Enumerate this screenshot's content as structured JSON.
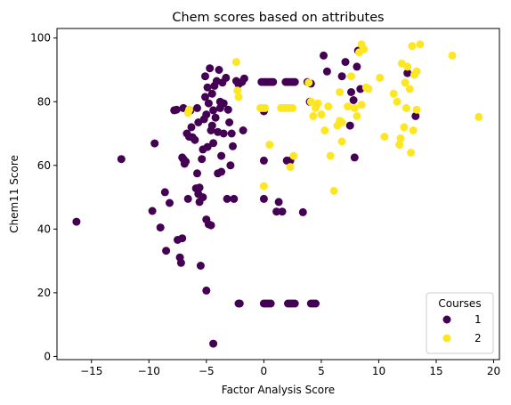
{
  "chart_data": {
    "type": "scatter",
    "title": "Chem scores based on attributes",
    "xlabel": "Factor Analysis Score",
    "ylabel": "Chem11 Score",
    "xlim": [
      -18,
      20.5
    ],
    "ylim": [
      -1,
      103
    ],
    "xticks": [
      -15,
      -10,
      -5,
      0,
      5,
      10,
      15,
      20
    ],
    "yticks": [
      0,
      20,
      40,
      60,
      80,
      100
    ],
    "grid": false,
    "legend": {
      "title": "Courses",
      "placement": "lower-right"
    },
    "series": [
      {
        "name": "1",
        "color": "#440154",
        "points": [
          [
            -16.3,
            42.3
          ],
          [
            -12.4,
            62
          ],
          [
            -9.7,
            45.7
          ],
          [
            -9.5,
            66.9
          ],
          [
            -9,
            40.5
          ],
          [
            -8.6,
            51.6
          ],
          [
            -8.5,
            33.2
          ],
          [
            -8.2,
            48.2
          ],
          [
            -7.8,
            77.3
          ],
          [
            -7.6,
            77.5
          ],
          [
            -7.5,
            36.6
          ],
          [
            -7.3,
            31.1
          ],
          [
            -7.2,
            29.4
          ],
          [
            -7.1,
            37.1
          ],
          [
            -7.1,
            62.5
          ],
          [
            -7,
            78
          ],
          [
            -7,
            62
          ],
          [
            -6.9,
            60.5
          ],
          [
            -6.8,
            61.2
          ],
          [
            -6.7,
            70
          ],
          [
            -6.6,
            49.5
          ],
          [
            -6.5,
            69
          ],
          [
            -6.4,
            77.2
          ],
          [
            -6.3,
            72
          ],
          [
            -6.2,
            68.8
          ],
          [
            -6,
            68
          ],
          [
            -5.9,
            52.8
          ],
          [
            -5.8,
            57.5
          ],
          [
            -5.8,
            78
          ],
          [
            -5.7,
            73.5
          ],
          [
            -5.7,
            51
          ],
          [
            -5.6,
            53
          ],
          [
            -5.6,
            48.5
          ],
          [
            -5.5,
            28.5
          ],
          [
            -5.4,
            62
          ],
          [
            -5.3,
            65
          ],
          [
            -5.3,
            50
          ],
          [
            -5.2,
            74.5
          ],
          [
            -5.1,
            81.5
          ],
          [
            -5.1,
            88
          ],
          [
            -5,
            76
          ],
          [
            -5,
            43
          ],
          [
            -5,
            20.7
          ],
          [
            -4.9,
            84.5
          ],
          [
            -4.9,
            65.8
          ],
          [
            -4.8,
            41.5
          ],
          [
            -4.8,
            79.5
          ],
          [
            -4.7,
            90.5
          ],
          [
            -4.6,
            71
          ],
          [
            -4.6,
            41.2
          ],
          [
            -4.5,
            82.5
          ],
          [
            -4.5,
            72.5
          ],
          [
            -4.4,
            77.3
          ],
          [
            -4.4,
            67
          ],
          [
            -4.4,
            4
          ],
          [
            -4.3,
            85
          ],
          [
            -4.2,
            75
          ],
          [
            -4.1,
            86.5
          ],
          [
            -4,
            70.5
          ],
          [
            -4,
            57.5
          ],
          [
            -3.9,
            90
          ],
          [
            -3.8,
            80
          ],
          [
            -3.8,
            78
          ],
          [
            -3.7,
            63
          ],
          [
            -3.7,
            58
          ],
          [
            -3.6,
            86
          ],
          [
            -3.5,
            70
          ],
          [
            -3.5,
            79.5
          ],
          [
            -3.3,
            87.5
          ],
          [
            -3.2,
            49.5
          ],
          [
            -3.1,
            77.5
          ],
          [
            -3,
            73.5
          ],
          [
            -2.9,
            60
          ],
          [
            -2.8,
            70
          ],
          [
            -2.7,
            66
          ],
          [
            -2.6,
            49.5
          ],
          [
            -2.4,
            86.5
          ],
          [
            -2.2,
            85.5
          ],
          [
            -2.2,
            16.6
          ],
          [
            -2.1,
            16.6
          ],
          [
            -1.9,
            86.2
          ],
          [
            -1.8,
            71
          ],
          [
            -1.7,
            87.3
          ],
          [
            -0.2,
            86.2
          ],
          [
            0,
            86.2
          ],
          [
            0.2,
            86.2
          ],
          [
            0.4,
            86.2
          ],
          [
            0.6,
            86.2
          ],
          [
            0.8,
            86.2
          ],
          [
            0,
            77
          ],
          [
            0,
            61.5
          ],
          [
            0,
            49.5
          ],
          [
            0,
            16.6
          ],
          [
            0.2,
            16.6
          ],
          [
            0.4,
            16.6
          ],
          [
            0.6,
            16.6
          ],
          [
            1.1,
            45.5
          ],
          [
            1.3,
            48.5
          ],
          [
            1.6,
            45.5
          ],
          [
            1.9,
            86.2
          ],
          [
            2.1,
            86.2
          ],
          [
            2.3,
            86.2
          ],
          [
            2.5,
            86.2
          ],
          [
            2.7,
            86.2
          ],
          [
            2,
            61.5
          ],
          [
            2.3,
            61.5
          ],
          [
            2.1,
            16.6
          ],
          [
            2.3,
            16.6
          ],
          [
            2.5,
            16.6
          ],
          [
            2.7,
            16.6
          ],
          [
            3.4,
            45.3
          ],
          [
            3.8,
            86.2
          ],
          [
            4,
            80
          ],
          [
            4.1,
            85.7
          ],
          [
            4.1,
            16.6
          ],
          [
            4.3,
            16.6
          ],
          [
            4.5,
            16.6
          ],
          [
            5.2,
            94.5
          ],
          [
            5.5,
            89.5
          ],
          [
            6.8,
            88
          ],
          [
            7.1,
            92.5
          ],
          [
            7.5,
            72.5
          ],
          [
            7.6,
            83
          ],
          [
            7.8,
            80.5
          ],
          [
            7.9,
            62.5
          ],
          [
            8.1,
            91
          ],
          [
            8.2,
            96
          ],
          [
            8.4,
            84
          ],
          [
            12.5,
            89
          ],
          [
            13.2,
            75.5
          ]
        ]
      },
      {
        "name": "2",
        "color": "#fde725",
        "points": [
          [
            -6.6,
            76.5
          ],
          [
            -6.5,
            77.5
          ],
          [
            -2.4,
            92.5
          ],
          [
            -2.3,
            83.5
          ],
          [
            -2.2,
            81.5
          ],
          [
            -0.3,
            78
          ],
          [
            -0.1,
            78
          ],
          [
            0.1,
            78
          ],
          [
            0,
            53.5
          ],
          [
            0.5,
            66.5
          ],
          [
            1.5,
            78
          ],
          [
            1.7,
            78
          ],
          [
            1.9,
            78
          ],
          [
            2.1,
            78
          ],
          [
            2.3,
            78
          ],
          [
            2.5,
            78
          ],
          [
            2.3,
            59.5
          ],
          [
            2.6,
            63
          ],
          [
            3.9,
            86
          ],
          [
            4.1,
            80
          ],
          [
            4.3,
            75.5
          ],
          [
            4.5,
            78
          ],
          [
            4.7,
            79.5
          ],
          [
            5,
            76
          ],
          [
            5.3,
            71
          ],
          [
            5.6,
            78.5
          ],
          [
            5.8,
            63
          ],
          [
            6.1,
            52
          ],
          [
            6.4,
            72.5
          ],
          [
            6.6,
            74
          ],
          [
            6.8,
            73.5
          ],
          [
            6.6,
            83
          ],
          [
            6.8,
            67.5
          ],
          [
            7.3,
            78.5
          ],
          [
            7.6,
            88
          ],
          [
            7.9,
            78
          ],
          [
            8.1,
            75.5
          ],
          [
            8.3,
            95.5
          ],
          [
            8.5,
            98
          ],
          [
            8.7,
            96.5
          ],
          [
            8.5,
            79
          ],
          [
            8.9,
            84.5
          ],
          [
            9.1,
            84
          ],
          [
            10.1,
            87.5
          ],
          [
            10.5,
            69
          ],
          [
            11.3,
            82.5
          ],
          [
            11.6,
            80
          ],
          [
            11.8,
            66.5
          ],
          [
            11.9,
            68.5
          ],
          [
            12,
            92
          ],
          [
            12.2,
            72
          ],
          [
            12.4,
            78
          ],
          [
            12.5,
            91
          ],
          [
            12.7,
            84
          ],
          [
            12.8,
            64
          ],
          [
            12.9,
            97.5
          ],
          [
            13,
            71
          ],
          [
            13.1,
            88.5
          ],
          [
            13.3,
            89.5
          ],
          [
            13.3,
            77.5
          ],
          [
            13.6,
            98
          ],
          [
            16.4,
            94.5
          ],
          [
            18.7,
            75.2
          ],
          [
            12.3,
            86
          ]
        ]
      }
    ]
  }
}
